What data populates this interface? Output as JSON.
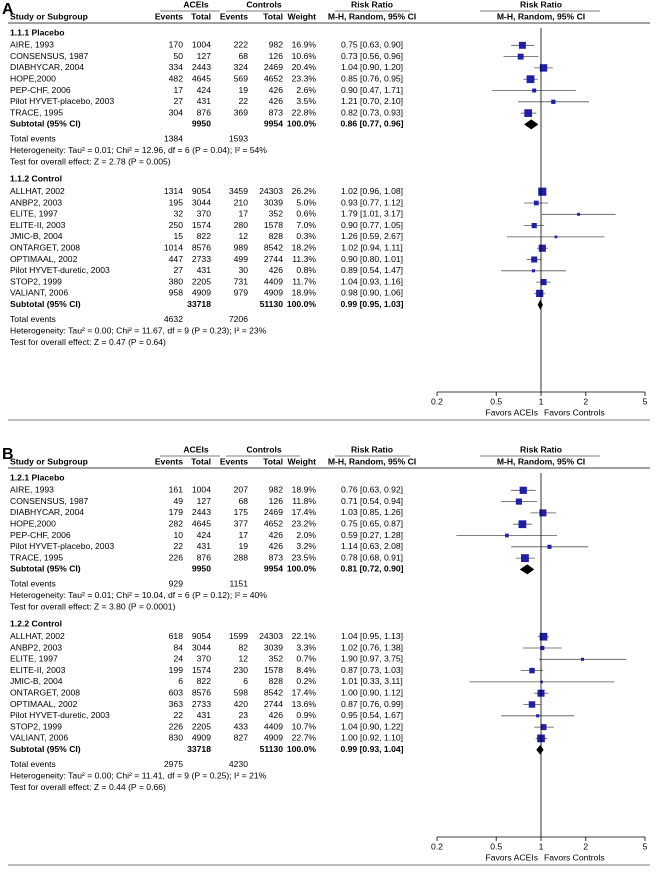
{
  "chart_data": [
    {
      "type": "forest",
      "panel": "A",
      "header": {
        "group1": "ACEIs",
        "group2": "Controls",
        "effect": "Risk Ratio",
        "plot": "Risk Ratio",
        "study": "Study or Subgroup",
        "events1": "Events",
        "total1": "Total",
        "events2": "Events",
        "total2": "Total",
        "weight": "Weight",
        "method": "M-H, Random, 95% CI",
        "plot_method": "M-H, Random, 95% CI"
      },
      "subgroups": [
        {
          "title": "1.1.1 Placebo",
          "studies": [
            {
              "name": "AIRE, 1993",
              "e1": 170,
              "n1": 1004,
              "e2": 222,
              "n2": 982,
              "w": "16.9%",
              "ci": "0.75 [0.63, 0.90]",
              "rr": 0.75,
              "lo": 0.63,
              "hi": 0.9
            },
            {
              "name": "CONSENSUS, 1987",
              "e1": 50,
              "n1": 127,
              "e2": 68,
              "n2": 126,
              "w": "10.6%",
              "ci": "0.73 [0.56, 0.96]",
              "rr": 0.73,
              "lo": 0.56,
              "hi": 0.96
            },
            {
              "name": "DIABHYCAR, 2004",
              "e1": 334,
              "n1": 2443,
              "e2": 324,
              "n2": 2469,
              "w": "20.4%",
              "ci": "1.04 [0.90, 1.20]",
              "rr": 1.04,
              "lo": 0.9,
              "hi": 1.2
            },
            {
              "name": "HOPE,2000",
              "e1": 482,
              "n1": 4645,
              "e2": 569,
              "n2": 4652,
              "w": "23.3%",
              "ci": "0.85 [0.76, 0.95]",
              "rr": 0.85,
              "lo": 0.76,
              "hi": 0.95
            },
            {
              "name": "PEP-CHF, 2006",
              "e1": 17,
              "n1": 424,
              "e2": 19,
              "n2": 426,
              "w": "2.6%",
              "ci": "0.90 [0.47, 1.71]",
              "rr": 0.9,
              "lo": 0.47,
              "hi": 1.71
            },
            {
              "name": "Pilot HYVET-placebo, 2003",
              "e1": 27,
              "n1": 431,
              "e2": 22,
              "n2": 426,
              "w": "3.5%",
              "ci": "1.21 [0.70, 2.10]",
              "rr": 1.21,
              "lo": 0.7,
              "hi": 2.1
            },
            {
              "name": "TRACE, 1995",
              "e1": 304,
              "n1": 876,
              "e2": 369,
              "n2": 873,
              "w": "22.8%",
              "ci": "0.82 [0.73, 0.93]",
              "rr": 0.82,
              "lo": 0.73,
              "hi": 0.93
            }
          ],
          "subtotal": {
            "label": "Subtotal (95% CI)",
            "n1": 9950,
            "n2": 9954,
            "w": "100.0%",
            "ci": "0.86 [0.77, 0.96]",
            "rr": 0.86,
            "lo": 0.77,
            "hi": 0.96
          },
          "total_events": {
            "label": "Total events",
            "e1": 1384,
            "e2": 1593
          },
          "heterogeneity": "Heterogeneity: Tau² = 0.01; Chi² = 12.96, df = 6 (P = 0.04); I² = 54%",
          "overall": "Test for overall effect: Z = 2.78 (P = 0.005)"
        },
        {
          "title": "1.1.2 Control",
          "studies": [
            {
              "name": "ALLHAT, 2002",
              "e1": 1314,
              "n1": 9054,
              "e2": 3459,
              "n2": 24303,
              "w": "26.2%",
              "ci": "1.02 [0.96, 1.08]",
              "rr": 1.02,
              "lo": 0.96,
              "hi": 1.08
            },
            {
              "name": "ANBP2, 2003",
              "e1": 195,
              "n1": 3044,
              "e2": 210,
              "n2": 3039,
              "w": "5.0%",
              "ci": "0.93 [0.77, 1.12]",
              "rr": 0.93,
              "lo": 0.77,
              "hi": 1.12
            },
            {
              "name": "ELITE, 1997",
              "e1": 32,
              "n1": 370,
              "e2": 17,
              "n2": 352,
              "w": "0.6%",
              "ci": "1.79 [1.01, 3.17]",
              "rr": 1.79,
              "lo": 1.01,
              "hi": 3.17
            },
            {
              "name": "ELITE-II, 2003",
              "e1": 250,
              "n1": 1574,
              "e2": 280,
              "n2": 1578,
              "w": "7.0%",
              "ci": "0.90 [0.77, 1.05]",
              "rr": 0.9,
              "lo": 0.77,
              "hi": 1.05
            },
            {
              "name": "JMIC-B, 2004",
              "e1": 15,
              "n1": 822,
              "e2": 12,
              "n2": 828,
              "w": "0.3%",
              "ci": "1.26 [0.59, 2.67]",
              "rr": 1.26,
              "lo": 0.59,
              "hi": 2.67
            },
            {
              "name": "ONTARGET, 2008",
              "e1": 1014,
              "n1": 8576,
              "e2": 989,
              "n2": 8542,
              "w": "18.2%",
              "ci": "1.02 [0.94, 1.11]",
              "rr": 1.02,
              "lo": 0.94,
              "hi": 1.11
            },
            {
              "name": "OPTIMAAL, 2002",
              "e1": 447,
              "n1": 2733,
              "e2": 499,
              "n2": 2744,
              "w": "11.3%",
              "ci": "0.90 [0.80, 1.01]",
              "rr": 0.9,
              "lo": 0.8,
              "hi": 1.01
            },
            {
              "name": "Pilot HYVET-duretic, 2003",
              "e1": 27,
              "n1": 431,
              "e2": 30,
              "n2": 426,
              "w": "0.8%",
              "ci": "0.89 [0.54, 1.47]",
              "rr": 0.89,
              "lo": 0.54,
              "hi": 1.47
            },
            {
              "name": "STOP2, 1999",
              "e1": 380,
              "n1": 2205,
              "e2": 731,
              "n2": 4409,
              "w": "11.7%",
              "ci": "1.04 [0.93, 1.16]",
              "rr": 1.04,
              "lo": 0.93,
              "hi": 1.16
            },
            {
              "name": "VALIANT, 2006",
              "e1": 958,
              "n1": 4909,
              "e2": 979,
              "n2": 4909,
              "w": "18.9%",
              "ci": "0.98 [0.90, 1.06]",
              "rr": 0.98,
              "lo": 0.9,
              "hi": 1.06
            }
          ],
          "subtotal": {
            "label": "Subtotal (95% CI)",
            "n1": 33718,
            "n2": 51130,
            "w": "100.0%",
            "ci": "0.99 [0.95, 1.03]",
            "rr": 0.99,
            "lo": 0.95,
            "hi": 1.03
          },
          "total_events": {
            "label": "Total events",
            "e1": 4632,
            "e2": 7206
          },
          "heterogeneity": "Heterogeneity: Tau² = 0.00; Chi² = 11.67, df = 9 (P = 0.23); I² = 23%",
          "overall": "Test for overall effect: Z = 0.47 (P = 0.64)"
        }
      ],
      "xscale": "log",
      "xlim": [
        0.2,
        5
      ],
      "xticks": [
        0.2,
        0.5,
        1,
        2,
        5
      ],
      "xlabel_left": "Favors ACEIs",
      "xlabel_right": "Favors Controls",
      "color": "#1f1fa8"
    },
    {
      "type": "forest",
      "panel": "B",
      "header": {
        "group1": "ACEIs",
        "group2": "Controls",
        "effect": "Risk Ratio",
        "plot": "Risk Ratio",
        "study": "Study or Subgroup",
        "events1": "Events",
        "total1": "Total",
        "events2": "Events",
        "total2": "Total",
        "weight": "Weight",
        "method": "M-H, Random, 95% CI",
        "plot_method": "M-H, Random, 95% CI"
      },
      "subgroups": [
        {
          "title": "1.2.1 Placebo",
          "studies": [
            {
              "name": "AIRE, 1993",
              "e1": 161,
              "n1": 1004,
              "e2": 207,
              "n2": 982,
              "w": "18.9%",
              "ci": "0.76 [0.63, 0.92]",
              "rr": 0.76,
              "lo": 0.63,
              "hi": 0.92
            },
            {
              "name": "CONSENSUS, 1987",
              "e1": 49,
              "n1": 127,
              "e2": 68,
              "n2": 126,
              "w": "11.8%",
              "ci": "0.71 [0.54, 0.94]",
              "rr": 0.71,
              "lo": 0.54,
              "hi": 0.94
            },
            {
              "name": "DIABHYCAR, 2004",
              "e1": 179,
              "n1": 2443,
              "e2": 175,
              "n2": 2469,
              "w": "17.4%",
              "ci": "1.03 [0.85, 1.26]",
              "rr": 1.03,
              "lo": 0.85,
              "hi": 1.26
            },
            {
              "name": "HOPE,2000",
              "e1": 282,
              "n1": 4645,
              "e2": 377,
              "n2": 4652,
              "w": "23.2%",
              "ci": "0.75 [0.65, 0.87]",
              "rr": 0.75,
              "lo": 0.65,
              "hi": 0.87
            },
            {
              "name": "PEP-CHF, 2006",
              "e1": 10,
              "n1": 424,
              "e2": 17,
              "n2": 426,
              "w": "2.0%",
              "ci": "0.59 [0.27, 1.28]",
              "rr": 0.59,
              "lo": 0.27,
              "hi": 1.28
            },
            {
              "name": "Pilot HYVET-placebo, 2003",
              "e1": 22,
              "n1": 431,
              "e2": 19,
              "n2": 426,
              "w": "3.2%",
              "ci": "1.14 [0.63, 2.08]",
              "rr": 1.14,
              "lo": 0.63,
              "hi": 2.08
            },
            {
              "name": "TRACE, 1995",
              "e1": 226,
              "n1": 876,
              "e2": 288,
              "n2": 873,
              "w": "23.5%",
              "ci": "0.78 [0.68, 0.91]",
              "rr": 0.78,
              "lo": 0.68,
              "hi": 0.91
            }
          ],
          "subtotal": {
            "label": "Subtotal (95% CI)",
            "n1": 9950,
            "n2": 9954,
            "w": "100.0%",
            "ci": "0.81 [0.72, 0.90]",
            "rr": 0.81,
            "lo": 0.72,
            "hi": 0.9
          },
          "total_events": {
            "label": "Total events",
            "e1": 929,
            "e2": 1151
          },
          "heterogeneity": "Heterogeneity: Tau² = 0.01; Chi² = 10.04, df = 6 (P = 0.12); I² = 40%",
          "overall": "Test for overall effect: Z = 3.80 (P = 0.0001)"
        },
        {
          "title": "1.2.2 Control",
          "studies": [
            {
              "name": "ALLHAT, 2002",
              "e1": 618,
              "n1": 9054,
              "e2": 1599,
              "n2": 24303,
              "w": "22.1%",
              "ci": "1.04 [0.95, 1.13]",
              "rr": 1.04,
              "lo": 0.95,
              "hi": 1.13
            },
            {
              "name": "ANBP2, 2003",
              "e1": 84,
              "n1": 3044,
              "e2": 82,
              "n2": 3039,
              "w": "3.3%",
              "ci": "1.02 [0.76, 1.38]",
              "rr": 1.02,
              "lo": 0.76,
              "hi": 1.38
            },
            {
              "name": "ELITE, 1997",
              "e1": 24,
              "n1": 370,
              "e2": 12,
              "n2": 352,
              "w": "0.7%",
              "ci": "1.90 [0.97, 3.75]",
              "rr": 1.9,
              "lo": 0.97,
              "hi": 3.75
            },
            {
              "name": "ELITE-II, 2003",
              "e1": 199,
              "n1": 1574,
              "e2": 230,
              "n2": 1578,
              "w": "8.4%",
              "ci": "0.87 [0.73, 1.03]",
              "rr": 0.87,
              "lo": 0.73,
              "hi": 1.03
            },
            {
              "name": "JMIC-B, 2004",
              "e1": 6,
              "n1": 822,
              "e2": 6,
              "n2": 828,
              "w": "0.2%",
              "ci": "1.01 [0.33, 3.11]",
              "rr": 1.01,
              "lo": 0.33,
              "hi": 3.11
            },
            {
              "name": "ONTARGET, 2008",
              "e1": 603,
              "n1": 8576,
              "e2": 598,
              "n2": 8542,
              "w": "17.4%",
              "ci": "1.00 [0.90, 1.12]",
              "rr": 1.0,
              "lo": 0.9,
              "hi": 1.12
            },
            {
              "name": "OPTIMAAL, 2002",
              "e1": 363,
              "n1": 2733,
              "e2": 420,
              "n2": 2744,
              "w": "13.6%",
              "ci": "0.87 [0.76, 0.99]",
              "rr": 0.87,
              "lo": 0.76,
              "hi": 0.99
            },
            {
              "name": "Pilot HYVET-duretic, 2003",
              "e1": 22,
              "n1": 431,
              "e2": 23,
              "n2": 426,
              "w": "0.9%",
              "ci": "0.95 [0.54, 1.67]",
              "rr": 0.95,
              "lo": 0.54,
              "hi": 1.67
            },
            {
              "name": "STOP2, 1999",
              "e1": 226,
              "n1": 2205,
              "e2": 433,
              "n2": 4409,
              "w": "10.7%",
              "ci": "1.04 [0.90, 1.22]",
              "rr": 1.04,
              "lo": 0.9,
              "hi": 1.22
            },
            {
              "name": "VALIANT, 2006",
              "e1": 830,
              "n1": 4909,
              "e2": 827,
              "n2": 4909,
              "w": "22.7%",
              "ci": "1.00 [0.92, 1.10]",
              "rr": 1.0,
              "lo": 0.92,
              "hi": 1.1
            }
          ],
          "subtotal": {
            "label": "Subtotal (95% CI)",
            "n1": 33718,
            "n2": 51130,
            "w": "100.0%",
            "ci": "0.99 [0.93, 1.04]",
            "rr": 0.99,
            "lo": 0.93,
            "hi": 1.04
          },
          "total_events": {
            "label": "Total events",
            "e1": 2975,
            "e2": 4230
          },
          "heterogeneity": "Heterogeneity: Tau² = 0.00; Chi² = 11.41, df = 9 (P = 0.25); I² = 21%",
          "overall": "Test for overall effect: Z = 0.44 (P = 0.66)"
        }
      ],
      "xscale": "log",
      "xlim": [
        0.2,
        5
      ],
      "xticks": [
        0.2,
        0.5,
        1,
        2,
        5
      ],
      "xlabel_left": "Favors ACEIs",
      "xlabel_right": "Favors Controls",
      "color": "#1f1fa8"
    }
  ]
}
